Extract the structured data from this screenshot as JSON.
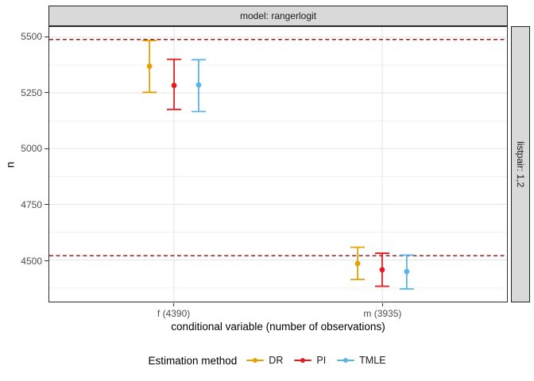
{
  "strips": {
    "top": "model: rangerlogit",
    "right": "listpair: 1,2"
  },
  "chart_data": {
    "type": "scatter",
    "subtype": "point-with-errorbars-dodged",
    "facet_col_label": "model: rangerlogit",
    "facet_row_label": "listpair: 1,2",
    "xlabel": "conditional variable (number of observations)",
    "ylabel": "n",
    "legend_title": "Estimation method",
    "legend_position": "bottom",
    "categories": [
      "f (4390)",
      "m (3935)"
    ],
    "series": [
      {
        "name": "DR",
        "color": "#E69F00",
        "points": [
          {
            "category": "f (4390)",
            "y": 5370,
            "ymin": 5253,
            "ymax": 5485
          },
          {
            "category": "m (3935)",
            "y": 4485,
            "ymin": 4413,
            "ymax": 4558
          }
        ]
      },
      {
        "name": "PI",
        "color": "#E8191C",
        "points": [
          {
            "category": "f (4390)",
            "y": 5284,
            "ymin": 5176,
            "ymax": 5401
          },
          {
            "category": "m (3935)",
            "y": 4457,
            "ymin": 4383,
            "ymax": 4531
          }
        ]
      },
      {
        "name": "TMLE",
        "color": "#56B4E9",
        "points": [
          {
            "category": "f (4390)",
            "y": 5286,
            "ymin": 5167,
            "ymax": 5399
          },
          {
            "category": "m (3935)",
            "y": 4449,
            "ymin": 4371,
            "ymax": 4523
          }
        ]
      }
    ],
    "reference_lines": [
      {
        "y": 5490,
        "style": "dashed",
        "color": "#9E1B1F"
      },
      {
        "y": 4520,
        "style": "dashed",
        "color": "#9E1B1F"
      }
    ],
    "y_ticks": [
      4500,
      4750,
      5000,
      5250,
      5500
    ],
    "y_minor_ticks": [
      4375,
      4625,
      4875,
      5125,
      5375
    ],
    "ylim": [
      4314,
      5546
    ],
    "grid": true,
    "colors": {
      "grid_major": "#E3E3E3",
      "grid_minor": "#F1F1F1",
      "strip_fill": "#D9D9D9",
      "panel_border": "#2E2E2E",
      "tick_text": "#4D4D4D"
    }
  }
}
